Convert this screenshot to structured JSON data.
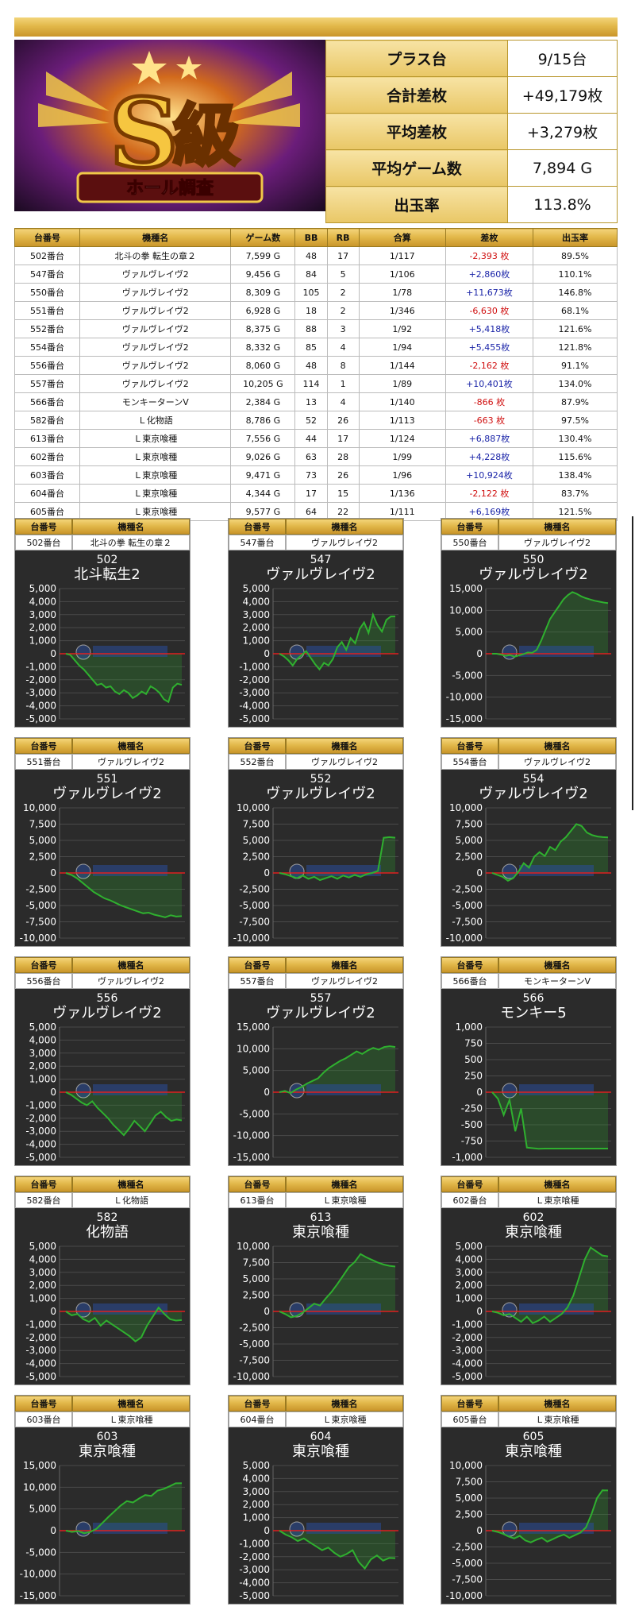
{
  "banner": {
    "logo_mark": "S",
    "logo_kanji": "級",
    "logo_subtitle": "ホール調査"
  },
  "summary": [
    {
      "label": "プラス台",
      "value": "9/15台"
    },
    {
      "label": "合計差枚",
      "value": "+49,179枚"
    },
    {
      "label": "平均差枚",
      "value": "+3,279枚"
    },
    {
      "label": "平均ゲーム数",
      "value": "7,894 G"
    },
    {
      "label": "出玉率",
      "value": "113.8%"
    }
  ],
  "table": {
    "headers": [
      "台番号",
      "機種名",
      "ゲーム数",
      "BB",
      "RB",
      "合算",
      "差枚",
      "出玉率"
    ],
    "rows": [
      [
        "502番台",
        "北斗の拳 転生の章２",
        "7,599 G",
        "48",
        "17",
        "1/117",
        "-2,393 枚",
        "89.5%"
      ],
      [
        "547番台",
        "ヴァルヴレイヴ2",
        "9,456 G",
        "84",
        "5",
        "1/106",
        "+2,860枚",
        "110.1%"
      ],
      [
        "550番台",
        "ヴァルヴレイヴ2",
        "8,309 G",
        "105",
        "2",
        "1/78",
        "+11,673枚",
        "146.8%"
      ],
      [
        "551番台",
        "ヴァルヴレイヴ2",
        "6,928 G",
        "18",
        "2",
        "1/346",
        "-6,630 枚",
        "68.1%"
      ],
      [
        "552番台",
        "ヴァルヴレイヴ2",
        "8,375 G",
        "88",
        "3",
        "1/92",
        "+5,418枚",
        "121.6%"
      ],
      [
        "554番台",
        "ヴァルヴレイヴ2",
        "8,332 G",
        "85",
        "4",
        "1/94",
        "+5,455枚",
        "121.8%"
      ],
      [
        "556番台",
        "ヴァルヴレイヴ2",
        "8,060 G",
        "48",
        "8",
        "1/144",
        "-2,162 枚",
        "91.1%"
      ],
      [
        "557番台",
        "ヴァルヴレイヴ2",
        "10,205 G",
        "114",
        "1",
        "1/89",
        "+10,401枚",
        "134.0%"
      ],
      [
        "566番台",
        "モンキーターンV",
        "2,384 G",
        "13",
        "4",
        "1/140",
        "-866 枚",
        "87.9%"
      ],
      [
        "582番台",
        "Ｌ化物語",
        "8,786 G",
        "52",
        "26",
        "1/113",
        "-663 枚",
        "97.5%"
      ],
      [
        "613番台",
        "Ｌ東京喰種",
        "7,556 G",
        "44",
        "17",
        "1/124",
        "+6,887枚",
        "130.4%"
      ],
      [
        "602番台",
        "Ｌ東京喰種",
        "9,026 G",
        "63",
        "28",
        "1/99",
        "+4,228枚",
        "115.6%"
      ],
      [
        "603番台",
        "Ｌ東京喰種",
        "9,471 G",
        "73",
        "26",
        "1/96",
        "+10,924枚",
        "138.4%"
      ],
      [
        "604番台",
        "Ｌ東京喰種",
        "4,344 G",
        "17",
        "15",
        "1/136",
        "-2,122 枚",
        "83.7%"
      ],
      [
        "605番台",
        "Ｌ東京喰種",
        "9,577 G",
        "64",
        "22",
        "1/111",
        "+6,169枚",
        "121.5%"
      ]
    ]
  },
  "panel_headers": {
    "machine_no": "台番号",
    "machine_name": "機種名"
  },
  "colors": {
    "gold": "#e2b84a",
    "positive": "#1a24a8",
    "negative": "#d01010",
    "plot_bg": "#2b2b2b",
    "line": "#2a9a2a",
    "zero": "#e02020"
  },
  "chart_data": [
    {
      "type": "line",
      "id": "502",
      "machine": "502番台",
      "name": "北斗の拳 転生の章２",
      "title": "502",
      "subtitle": "北斗転生2",
      "ylim": [
        -5000,
        5000
      ],
      "yticks": [
        5000,
        4000,
        3000,
        2000,
        1000,
        0,
        -1000,
        -2000,
        -3000,
        -4000,
        -5000
      ],
      "y": [
        0,
        -100,
        -500,
        -900,
        -1200,
        -1600,
        -2000,
        -2400,
        -2300,
        -2600,
        -2500,
        -2900,
        -3100,
        -2800,
        -3000,
        -3400,
        -3200,
        -2900,
        -3100,
        -2500,
        -2700,
        -3000,
        -3500,
        -3700,
        -2600,
        -2300,
        -2393
      ]
    },
    {
      "type": "line",
      "id": "547",
      "machine": "547番台",
      "name": "ヴァルヴレイヴ2",
      "title": "547",
      "subtitle": "ヴァルヴレイヴ2",
      "ylim": [
        -5000,
        5000
      ],
      "yticks": [
        5000,
        4000,
        3000,
        2000,
        1000,
        0,
        -1000,
        -2000,
        -3000,
        -4000,
        -5000
      ],
      "y": [
        0,
        -200,
        -500,
        -900,
        -400,
        -100,
        200,
        -300,
        -800,
        -1200,
        -700,
        -900,
        -400,
        500,
        900,
        300,
        1200,
        800,
        1900,
        2400,
        1600,
        3000,
        2200,
        1700,
        2600,
        2860,
        2860
      ]
    },
    {
      "type": "line",
      "id": "550",
      "machine": "550番台",
      "name": "ヴァルヴレイヴ2",
      "title": "550",
      "subtitle": "ヴァルヴレイヴ2",
      "ylim": [
        -15000,
        15000
      ],
      "yticks": [
        15000,
        10000,
        5000,
        0,
        -5000,
        -10000,
        -15000
      ],
      "y": [
        0,
        0,
        -200,
        -500,
        -300,
        -700,
        -400,
        -100,
        300,
        200,
        900,
        3000,
        5500,
        8000,
        9500,
        11000,
        12500,
        13500,
        14200,
        13800,
        13200,
        12800,
        12500,
        12200,
        12000,
        11800,
        11673
      ]
    },
    {
      "type": "line",
      "id": "551",
      "machine": "551番台",
      "name": "ヴァルヴレイヴ2",
      "title": "551",
      "subtitle": "ヴァルヴレイヴ2",
      "ylim": [
        -10000,
        10000
      ],
      "yticks": [
        10000,
        7500,
        5000,
        2500,
        0,
        -2500,
        -5000,
        -7500,
        -10000
      ],
      "y": [
        0,
        -300,
        -800,
        -1500,
        -2200,
        -2900,
        -3400,
        -3900,
        -4200,
        -4600,
        -5000,
        -5300,
        -5600,
        -5900,
        -6200,
        -6100,
        -6400,
        -6600,
        -6800,
        -6500,
        -6700,
        -6630
      ]
    },
    {
      "type": "line",
      "id": "552",
      "machine": "552番台",
      "name": "ヴァルヴレイヴ2",
      "title": "552",
      "subtitle": "ヴァルヴレイヴ2",
      "ylim": [
        -10000,
        10000
      ],
      "yticks": [
        10000,
        7500,
        5000,
        2500,
        0,
        -2500,
        -5000,
        -7500,
        -10000
      ],
      "y": [
        0,
        -200,
        -500,
        -800,
        -400,
        -900,
        -600,
        -1100,
        -800,
        -500,
        -900,
        -400,
        -700,
        -300,
        -600,
        -200,
        0,
        300,
        5400,
        5500,
        5418
      ]
    },
    {
      "type": "line",
      "id": "554",
      "machine": "554番台",
      "name": "ヴァルヴレイヴ2",
      "title": "554",
      "subtitle": "ヴァルヴレイヴ2",
      "ylim": [
        -10000,
        10000
      ],
      "yticks": [
        10000,
        7500,
        5000,
        2500,
        0,
        -2500,
        -5000,
        -7500,
        -10000
      ],
      "y": [
        0,
        -300,
        -600,
        -1200,
        -800,
        200,
        1500,
        800,
        2500,
        3200,
        2600,
        4000,
        3500,
        4800,
        5500,
        6500,
        7500,
        7200,
        6200,
        5800,
        5600,
        5500,
        5455
      ]
    },
    {
      "type": "line",
      "id": "556",
      "machine": "556番台",
      "name": "ヴァルヴレイヴ2",
      "title": "556",
      "subtitle": "ヴァルヴレイヴ2",
      "ylim": [
        -5000,
        5000
      ],
      "yticks": [
        5000,
        4000,
        3000,
        2000,
        1000,
        0,
        -1000,
        -2000,
        -3000,
        -4000,
        -5000
      ],
      "y": [
        0,
        -200,
        -500,
        -800,
        -1000,
        -700,
        -1200,
        -1600,
        -2000,
        -2500,
        -2900,
        -3300,
        -2800,
        -2200,
        -2600,
        -3000,
        -2400,
        -1800,
        -1500,
        -1900,
        -2200,
        -2100,
        -2162
      ]
    },
    {
      "type": "line",
      "id": "557",
      "machine": "557番台",
      "name": "ヴァルヴレイヴ2",
      "title": "557",
      "subtitle": "ヴァルヴレイヴ2",
      "ylim": [
        -15000,
        15000
      ],
      "yticks": [
        15000,
        10000,
        5000,
        0,
        -5000,
        -10000,
        -15000
      ],
      "y": [
        0,
        300,
        -200,
        600,
        1200,
        2000,
        2600,
        3200,
        4500,
        5600,
        6400,
        7200,
        7800,
        8600,
        9400,
        8800,
        9600,
        10200,
        9800,
        10400,
        10600,
        10401
      ]
    },
    {
      "type": "line",
      "id": "566",
      "machine": "566番台",
      "name": "モンキーターンV",
      "title": "566",
      "subtitle": "モンキー5",
      "ylim": [
        -1000,
        1000
      ],
      "yticks": [
        1000,
        750,
        500,
        250,
        0,
        -250,
        -500,
        -750,
        -1000
      ],
      "y": [
        0,
        -100,
        -350,
        -120,
        -600,
        -250,
        -850,
        -860,
        -870,
        -866,
        -866,
        -866,
        -866,
        -866,
        -866,
        -866,
        -866,
        -866,
        -866,
        -866,
        -866
      ]
    },
    {
      "type": "line",
      "id": "582",
      "machine": "582番台",
      "name": "Ｌ化物語",
      "title": "582",
      "subtitle": "化物語",
      "ylim": [
        -5000,
        5000
      ],
      "yticks": [
        5000,
        4000,
        3000,
        2000,
        1000,
        0,
        -1000,
        -2000,
        -3000,
        -4000,
        -5000
      ],
      "y": [
        0,
        -300,
        -200,
        -600,
        -800,
        -500,
        -1100,
        -700,
        -1000,
        -1300,
        -1600,
        -1900,
        -2300,
        -2000,
        -1100,
        -400,
        300,
        -200,
        -600,
        -700,
        -663
      ]
    },
    {
      "type": "line",
      "id": "613",
      "machine": "613番台",
      "name": "Ｌ東京喰種",
      "title": "613",
      "subtitle": "東京喰種",
      "ylim": [
        -10000,
        10000
      ],
      "yticks": [
        10000,
        7500,
        5000,
        2500,
        0,
        -2500,
        -5000,
        -7500,
        -10000
      ],
      "y": [
        0,
        -400,
        -900,
        -700,
        -200,
        500,
        1200,
        900,
        2000,
        3000,
        4200,
        5500,
        6800,
        7600,
        8800,
        8300,
        7900,
        7500,
        7200,
        7000,
        6887
      ]
    },
    {
      "type": "line",
      "id": "602",
      "machine": "602番台",
      "name": "Ｌ東京喰種",
      "title": "602",
      "subtitle": "東京喰種",
      "ylim": [
        -5000,
        5000
      ],
      "yticks": [
        5000,
        4000,
        3000,
        2000,
        1000,
        0,
        -1000,
        -2000,
        -3000,
        -4000,
        -5000
      ],
      "y": [
        0,
        -100,
        -300,
        -200,
        -500,
        -800,
        -400,
        -900,
        -700,
        -400,
        -800,
        -500,
        -200,
        300,
        1200,
        2600,
        4000,
        4900,
        4600,
        4300,
        4228
      ]
    },
    {
      "type": "line",
      "id": "603",
      "machine": "603番台",
      "name": "Ｌ東京喰種",
      "title": "603",
      "subtitle": "東京喰種",
      "ylim": [
        -15000,
        15000
      ],
      "yticks": [
        15000,
        10000,
        5000,
        0,
        -5000,
        -10000,
        -15000
      ],
      "y": [
        0,
        -300,
        -100,
        -600,
        -300,
        400,
        1800,
        3200,
        4500,
        5800,
        6800,
        6500,
        7400,
        8200,
        8000,
        9200,
        9600,
        10200,
        10900,
        10924
      ]
    },
    {
      "type": "line",
      "id": "604",
      "machine": "604番台",
      "name": "Ｌ東京喰種",
      "title": "604",
      "subtitle": "東京喰種",
      "ylim": [
        -5000,
        5000
      ],
      "yticks": [
        5000,
        4000,
        3000,
        2000,
        1000,
        0,
        -1000,
        -2000,
        -3000,
        -4000,
        -5000
      ],
      "y": [
        0,
        -300,
        -500,
        -800,
        -600,
        -900,
        -1200,
        -1500,
        -1300,
        -1700,
        -2000,
        -1800,
        -1500,
        -2400,
        -2900,
        -2200,
        -1900,
        -2300,
        -2100,
        -2122
      ]
    },
    {
      "type": "line",
      "id": "605",
      "machine": "605番台",
      "name": "Ｌ東京喰種",
      "title": "605",
      "subtitle": "東京喰種",
      "ylim": [
        -10000,
        10000
      ],
      "yticks": [
        10000,
        7500,
        5000,
        2500,
        0,
        -2500,
        -5000,
        -7500,
        -10000
      ],
      "y": [
        0,
        -200,
        -500,
        -900,
        -1200,
        -800,
        -1500,
        -1800,
        -1400,
        -1100,
        -1700,
        -1300,
        -900,
        -600,
        -1100,
        -700,
        -300,
        500,
        2500,
        5000,
        6200,
        6169
      ]
    }
  ]
}
